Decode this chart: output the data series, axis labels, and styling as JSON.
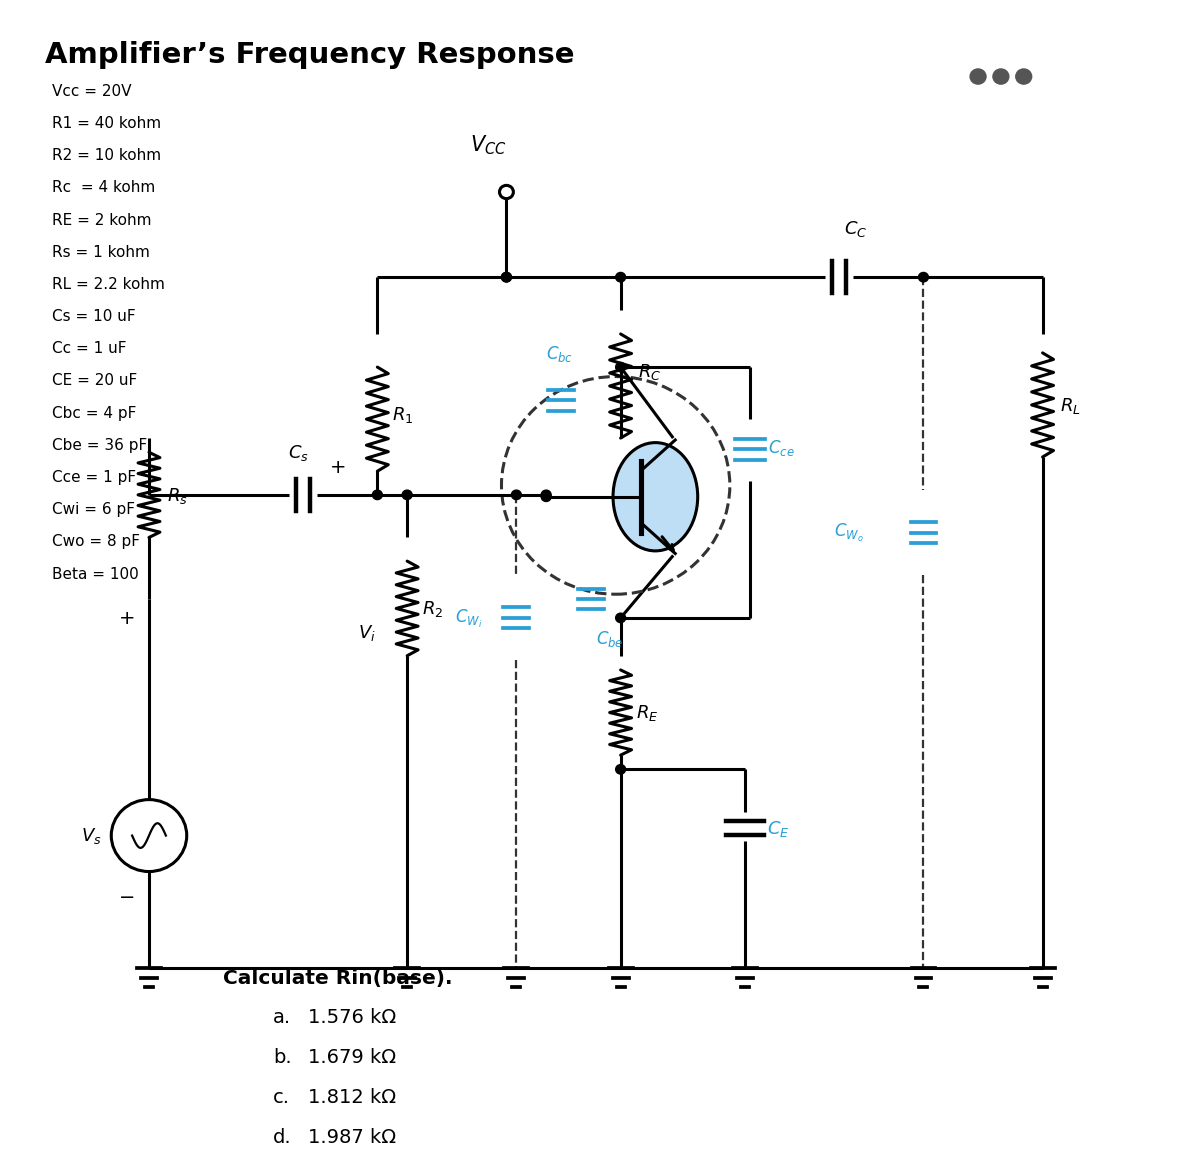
{
  "title": "Amplifier’s Frequency Response",
  "title_fontsize": 21,
  "bg_color": "#ffffff",
  "params_lines": [
    "Vcc = 20V",
    "R1 = 40 kohm",
    "R2 = 10 kohm",
    "Rc  = 4 kohm",
    "RE = 2 kohm",
    "Rs = 1 kohm",
    "RL = 2.2 kohm",
    "Cs = 10 uF",
    "Cc = 1 uF",
    "CE = 20 uF",
    "Cbc = 4 pF",
    "Cbe = 36 pF",
    "Cce = 1 pF",
    "Cwi = 6 pF",
    "Cwo = 8 pF",
    "Beta = 100"
  ],
  "question_text": "Calculate Rin(base).",
  "answers": [
    [
      "a.",
      "1.576 kΩ"
    ],
    [
      "b.",
      "1.679 kΩ"
    ],
    [
      "c.",
      "1.812 kΩ"
    ],
    [
      "d.",
      "1.987 kΩ"
    ]
  ],
  "circuit_color": "#000000",
  "blue_fill": "#b3d9f5",
  "label_color": "#2a9fd6",
  "dots_color": "#555555",
  "dashed_color": "#333333"
}
